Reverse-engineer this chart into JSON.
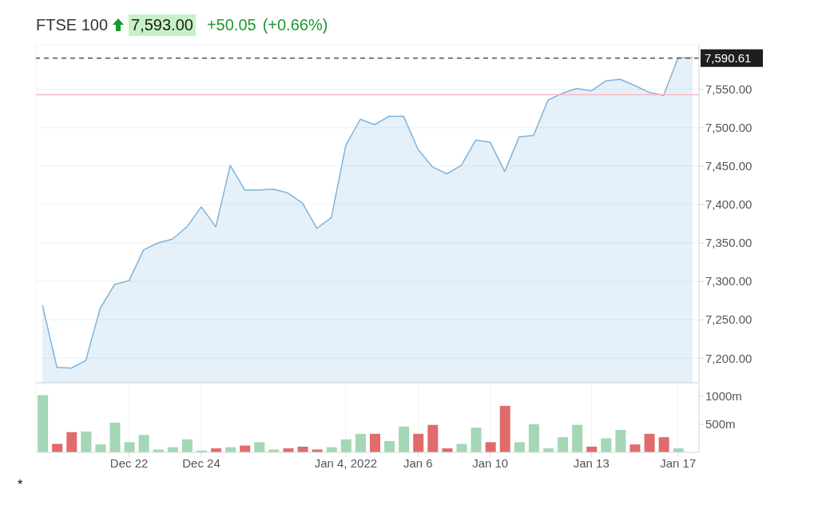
{
  "chart_data": [
    {
      "type": "area",
      "title": "FTSE 100",
      "annotations": [
        "7,593.00",
        "+50.05",
        "(+0.66%)"
      ],
      "categories": [
        null,
        null,
        null,
        null,
        null,
        null,
        null,
        null,
        null,
        null,
        null,
        null,
        null,
        null,
        null,
        null,
        null,
        null,
        null,
        null,
        null,
        null,
        null,
        null,
        null,
        null,
        null,
        null,
        null,
        null,
        null,
        null,
        null,
        null,
        null,
        null,
        null,
        null,
        null,
        null,
        null,
        null,
        null,
        null,
        null,
        null
      ],
      "series": [
        {
          "color": "#7fb3dc",
          "values": [
            7269,
            7188,
            7187,
            7197,
            7265,
            7296,
            7301,
            7341,
            7350,
            7355,
            7371,
            7397,
            7371,
            7451,
            7419,
            7419,
            7420,
            7415,
            7402,
            7369,
            7383,
            7477,
            7511,
            7504,
            7515,
            7515,
            7472,
            7449,
            7440,
            7451,
            7484,
            7481,
            7443,
            7488,
            7490,
            7536,
            7545,
            7551,
            7548,
            7561,
            7563,
            7555,
            7546,
            7542,
            7591,
            7591
          ]
        }
      ],
      "ylim": [
        7168,
        7608
      ],
      "yticks": [
        {
          "value": 7200,
          "label": "7,200.00"
        },
        {
          "value": 7250,
          "label": "7,250.00"
        },
        {
          "value": 7300,
          "label": "7,300.00"
        },
        {
          "value": 7350,
          "label": "7,350.00"
        },
        {
          "value": 7400,
          "label": "7,400.00"
        },
        {
          "value": 7450,
          "label": "7,450.00"
        },
        {
          "value": 7500,
          "label": "7,500.00"
        },
        {
          "value": 7550,
          "label": "7,550.00"
        }
      ],
      "ref_lines": [
        {
          "axis": "y",
          "value": 7590.61,
          "label": "7,590.61",
          "color": "#555555",
          "line_style": "dashed"
        },
        {
          "axis": "y",
          "value": 7543,
          "color": "#f9b9bf",
          "line_style": "solid"
        }
      ],
      "grid": true,
      "tick_labels": "y"
    },
    {
      "type": "bar",
      "annotations": [
        "*"
      ],
      "categories": [
        null,
        null,
        null,
        null,
        null,
        null,
        "Dec 22",
        null,
        null,
        null,
        null,
        "Dec 24",
        null,
        null,
        null,
        null,
        null,
        null,
        null,
        null,
        null,
        "Jan 4, 2022",
        null,
        null,
        null,
        null,
        "Jan 6",
        null,
        null,
        null,
        null,
        "Jan 10",
        null,
        null,
        null,
        null,
        null,
        null,
        "Jan 13",
        null,
        null,
        null,
        null,
        null,
        "Jan 17",
        null
      ],
      "values": [
        1020,
        150,
        360,
        370,
        140,
        530,
        180,
        310,
        50,
        90,
        230,
        30,
        70,
        90,
        120,
        180,
        50,
        70,
        100,
        50,
        90,
        230,
        330,
        330,
        200,
        460,
        330,
        490,
        70,
        150,
        440,
        180,
        830,
        180,
        500,
        70,
        270,
        490,
        100,
        250,
        400,
        140,
        330,
        270,
        70,
        null
      ],
      "colors": [
        "#a3d7b6",
        "#e06b6b",
        "#e06b6b",
        "#a3d7b6",
        "#a3d7b6",
        "#a3d7b6",
        "#a3d7b6",
        "#a3d7b6",
        "#a3d7b6",
        "#a3d7b6",
        "#a3d7b6",
        "#a3d7b6",
        "#e06b6b",
        "#a3d7b6",
        "#e06b6b",
        "#a3d7b6",
        "#a3d7b6",
        "#e06b6b",
        "#e06b6b",
        "#e06b6b",
        "#a3d7b6",
        "#a3d7b6",
        "#a3d7b6",
        "#e06b6b",
        "#a3d7b6",
        "#a3d7b6",
        "#e06b6b",
        "#e06b6b",
        "#e06b6b",
        "#a3d7b6",
        "#a3d7b6",
        "#e06b6b",
        "#e06b6b",
        "#a3d7b6",
        "#a3d7b6",
        "#a3d7b6",
        "#a3d7b6",
        "#a3d7b6",
        "#e06b6b",
        "#a3d7b6",
        "#a3d7b6",
        "#e06b6b",
        "#e06b6b",
        "#e06b6b",
        "#a3d7b6",
        "#a3d7b6"
      ],
      "ylim": [
        0,
        1200
      ],
      "yticks": [
        {
          "value": 500,
          "label": "500m"
        },
        {
          "value": 1000,
          "label": "1000m"
        }
      ],
      "grid": "x"
    }
  ]
}
